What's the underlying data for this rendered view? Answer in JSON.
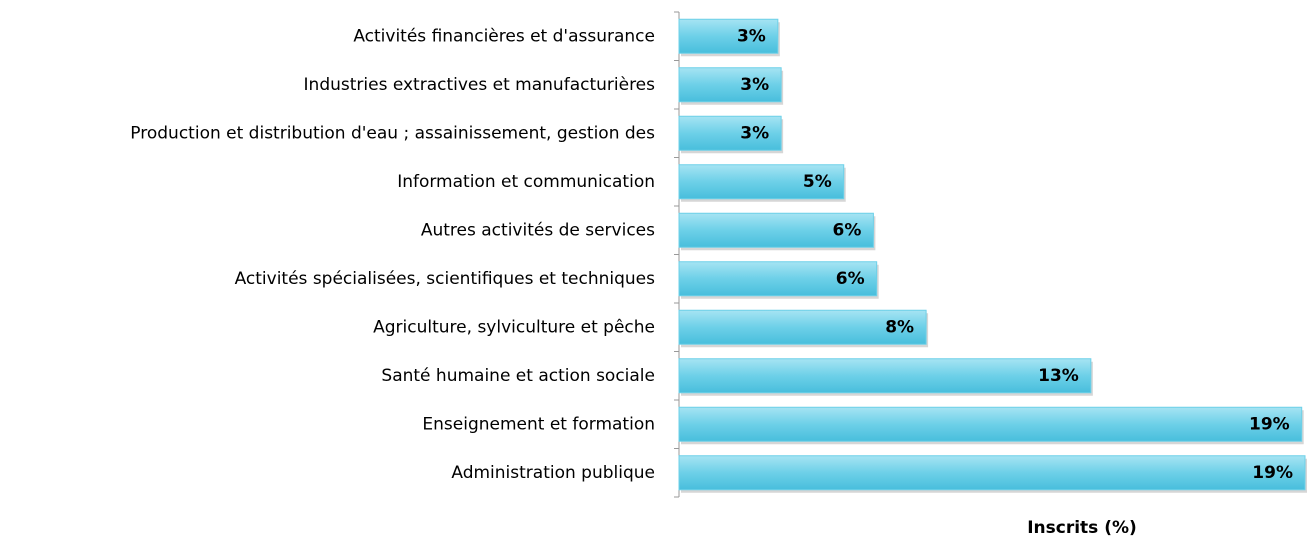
{
  "chart_data": {
    "type": "bar",
    "orientation": "horizontal",
    "categories": [
      "Activités financières et d'assurance",
      "Industries extractives et manufacturières",
      "Production et distribution d'eau ; assainissement, gestion des",
      "Information et communication",
      "Autres activités de services",
      "Activités spécialisées, scientifiques et techniques",
      "Agriculture, sylviculture et pêche",
      "Santé humaine et action sociale",
      "Enseignement et formation",
      "Administration publique"
    ],
    "values": [
      3.0,
      3.1,
      3.1,
      5.0,
      5.9,
      6.0,
      7.5,
      12.5,
      18.9,
      19.0
    ],
    "value_labels": [
      "3%",
      "3%",
      "3%",
      "5%",
      "6%",
      "6%",
      "8%",
      "13%",
      "19%",
      "19%"
    ],
    "xlabel": "Inscrits (%)",
    "xlim": [
      0,
      19
    ],
    "color": "#6dd0e8"
  }
}
